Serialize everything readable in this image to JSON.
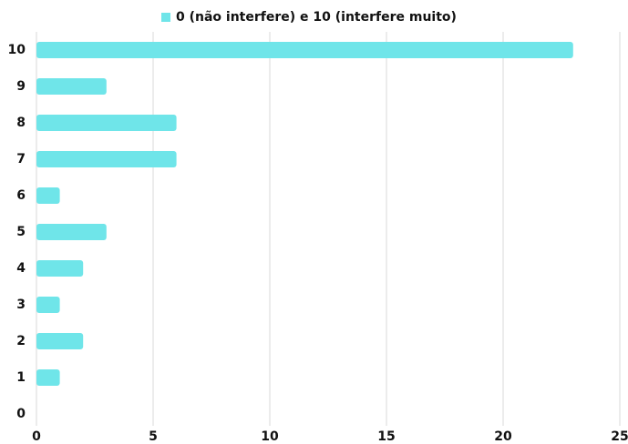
{
  "chart_data": {
    "type": "barh",
    "categories": [
      "10",
      "9",
      "8",
      "7",
      "6",
      "5",
      "4",
      "3",
      "2",
      "1",
      "0"
    ],
    "series": [
      {
        "name": "0 (não interfere) e 10 (interfere muito)",
        "color": "#6fe5e9",
        "values": [
          23,
          3,
          6,
          6,
          1,
          3,
          2,
          1,
          2,
          1,
          0
        ]
      }
    ],
    "xlim": [
      0,
      25
    ],
    "xticks": [
      0,
      5,
      10,
      15,
      20,
      25
    ],
    "grid": true,
    "legend": "top"
  }
}
